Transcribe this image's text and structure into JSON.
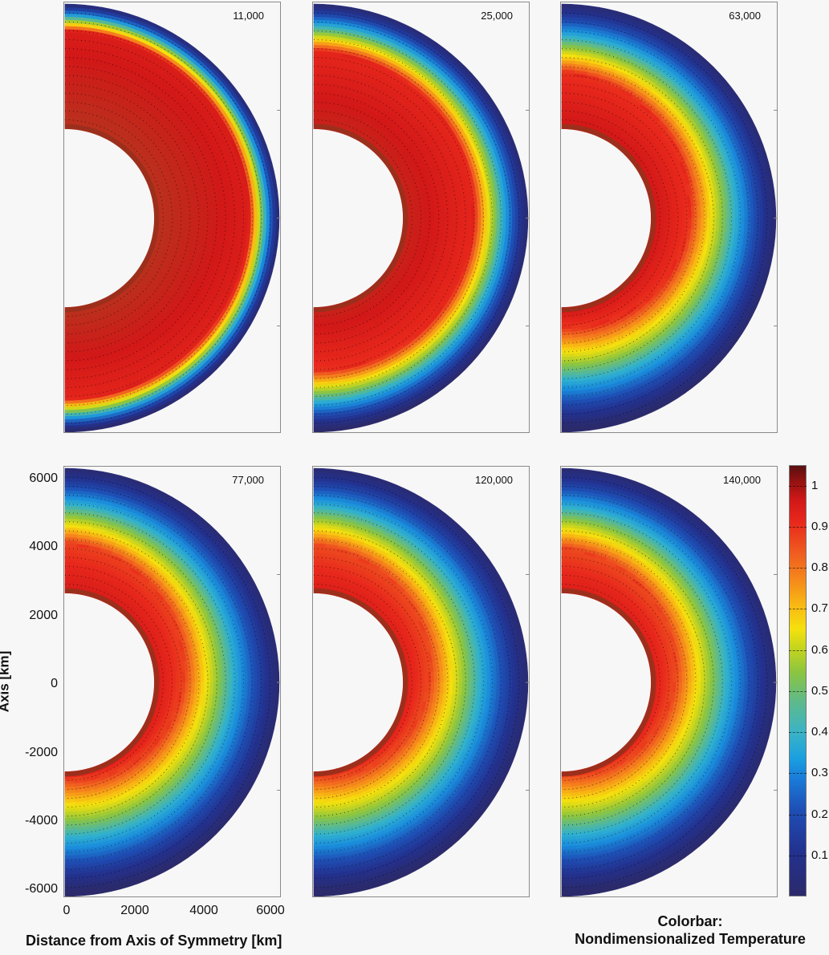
{
  "chart_data": {
    "type": "heatmap",
    "title": "",
    "description": "Six half-annulus temperature fields (meridional cross-sections) with velocity vectors, at successive times",
    "panels": [
      {
        "label": "11,000",
        "row": 0,
        "col": 0
      },
      {
        "label": "25,000",
        "row": 0,
        "col": 1
      },
      {
        "label": "63,000",
        "row": 0,
        "col": 2
      },
      {
        "label": "77,000",
        "row": 1,
        "col": 0
      },
      {
        "label": "120,000",
        "row": 1,
        "col": 1
      },
      {
        "label": "140,000",
        "row": 1,
        "col": 2
      }
    ],
    "xlabel": "Distance from Axis of Symmetry [km]",
    "ylabel": "Axis [km]",
    "x_ticks": [
      0,
      2000,
      4000,
      6000
    ],
    "y_ticks": [
      6000,
      4000,
      2000,
      0,
      -2000,
      -4000,
      -6000
    ],
    "xlim": [
      0,
      6400
    ],
    "ylim": [
      -6400,
      6400
    ],
    "inner_radius_km": 2650,
    "outer_radius_km": 6350,
    "colorbar": {
      "title": "Colorbar: Nondimensionalized Temperature",
      "range": [
        0,
        1.05
      ],
      "ticks": [
        0.1,
        0.2,
        0.3,
        0.4,
        0.5,
        0.6,
        0.7,
        0.8,
        0.9,
        1
      ],
      "colormap": "jet"
    }
  },
  "axes": {
    "ylabel": "Axis [km]",
    "xlabel": "Distance from Axis of Symmetry [km]",
    "yticks": [
      "6000",
      "4000",
      "2000",
      "0",
      "-2000",
      "-4000",
      "-6000"
    ],
    "xticks": [
      "0",
      "2000",
      "4000",
      "6000"
    ]
  },
  "panels": [
    {
      "label": "11,000"
    },
    {
      "label": "25,000"
    },
    {
      "label": "63,000"
    },
    {
      "label": "77,000"
    },
    {
      "label": "120,000"
    },
    {
      "label": "140,000"
    }
  ],
  "colorbar": {
    "title_line1": "Colorbar:",
    "title_line2": "Nondimensionalized Temperature",
    "ticks": [
      "1",
      "0.9",
      "0.8",
      "0.7",
      "0.6",
      "0.5",
      "0.4",
      "0.3",
      "0.2",
      "0.1"
    ]
  },
  "colors": {
    "hot": "#b8321e",
    "red": "#e8281c",
    "orange": "#f5851c",
    "yellow": "#f5e10e",
    "green": "#8cc540",
    "cyan": "#1aa0e0",
    "blue": "#23318e",
    "navy": "#2b2a6b"
  }
}
